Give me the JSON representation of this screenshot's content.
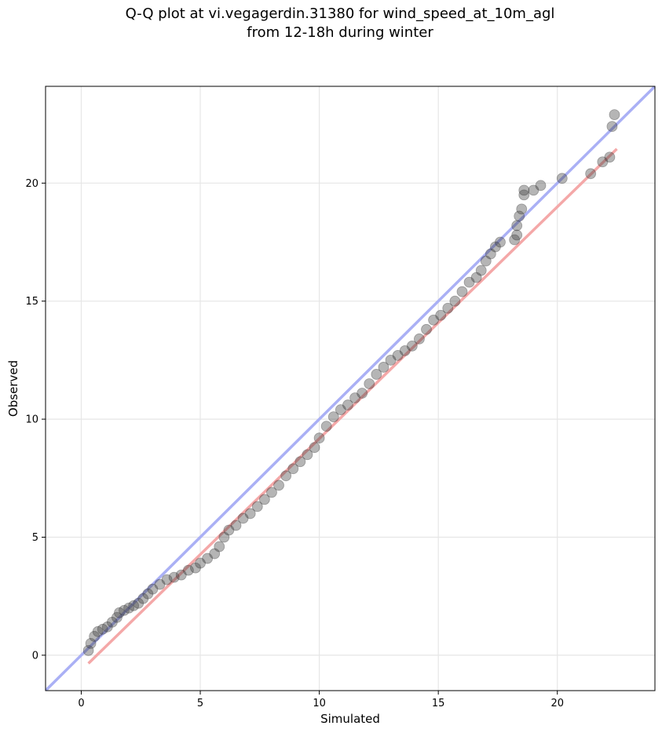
{
  "chart_data": {
    "type": "scatter",
    "title_line1": "Q-Q plot at vi.vegagerdin.31380 for wind_speed_at_10m_agl",
    "title_line2": "from 12-18h during winter",
    "xlabel": "Simulated",
    "ylabel": "Observed",
    "xlim": [
      -1.5,
      24.1
    ],
    "ylim": [
      -1.5,
      24.1
    ],
    "xticks": [
      0,
      5,
      10,
      15,
      20
    ],
    "yticks": [
      0,
      5,
      10,
      15,
      20
    ],
    "grid": true,
    "identity_line": {
      "name": "1:1",
      "color": "#aab0f5"
    },
    "fit_line": {
      "points": [
        [
          0.3,
          -0.35
        ],
        [
          22.5,
          21.45
        ]
      ],
      "color": "#f4a8a8"
    },
    "quantiles": [
      [
        0.3,
        0.2
      ],
      [
        0.4,
        0.5
      ],
      [
        0.55,
        0.8
      ],
      [
        0.7,
        1.0
      ],
      [
        0.9,
        1.1
      ],
      [
        1.1,
        1.2
      ],
      [
        1.3,
        1.4
      ],
      [
        1.5,
        1.6
      ],
      [
        1.6,
        1.8
      ],
      [
        1.8,
        1.9
      ],
      [
        2.0,
        2.0
      ],
      [
        2.2,
        2.1
      ],
      [
        2.4,
        2.2
      ],
      [
        2.6,
        2.4
      ],
      [
        2.8,
        2.6
      ],
      [
        3.0,
        2.8
      ],
      [
        3.3,
        3.0
      ],
      [
        3.6,
        3.2
      ],
      [
        3.9,
        3.3
      ],
      [
        4.2,
        3.4
      ],
      [
        4.5,
        3.6
      ],
      [
        4.8,
        3.7
      ],
      [
        5.0,
        3.9
      ],
      [
        5.3,
        4.1
      ],
      [
        5.6,
        4.3
      ],
      [
        5.8,
        4.6
      ],
      [
        6.0,
        5.0
      ],
      [
        6.2,
        5.3
      ],
      [
        6.5,
        5.5
      ],
      [
        6.8,
        5.8
      ],
      [
        7.1,
        6.0
      ],
      [
        7.4,
        6.3
      ],
      [
        7.7,
        6.6
      ],
      [
        8.0,
        6.9
      ],
      [
        8.3,
        7.2
      ],
      [
        8.6,
        7.6
      ],
      [
        8.9,
        7.9
      ],
      [
        9.2,
        8.2
      ],
      [
        9.5,
        8.5
      ],
      [
        9.8,
        8.8
      ],
      [
        10.0,
        9.2
      ],
      [
        10.3,
        9.7
      ],
      [
        10.6,
        10.1
      ],
      [
        10.9,
        10.4
      ],
      [
        11.2,
        10.6
      ],
      [
        11.5,
        10.9
      ],
      [
        11.8,
        11.1
      ],
      [
        12.1,
        11.5
      ],
      [
        12.4,
        11.9
      ],
      [
        12.7,
        12.2
      ],
      [
        13.0,
        12.5
      ],
      [
        13.3,
        12.7
      ],
      [
        13.6,
        12.9
      ],
      [
        13.9,
        13.1
      ],
      [
        14.2,
        13.4
      ],
      [
        14.5,
        13.8
      ],
      [
        14.8,
        14.2
      ],
      [
        15.1,
        14.4
      ],
      [
        15.4,
        14.7
      ],
      [
        15.7,
        15.0
      ],
      [
        16.0,
        15.4
      ],
      [
        16.3,
        15.8
      ],
      [
        16.6,
        16.0
      ],
      [
        16.8,
        16.3
      ],
      [
        17.0,
        16.7
      ],
      [
        17.2,
        17.0
      ],
      [
        17.4,
        17.3
      ],
      [
        17.6,
        17.5
      ],
      [
        18.2,
        17.6
      ],
      [
        18.3,
        17.8
      ],
      [
        18.3,
        18.2
      ],
      [
        18.4,
        18.6
      ],
      [
        18.5,
        18.9
      ],
      [
        18.6,
        19.5
      ],
      [
        18.6,
        19.7
      ],
      [
        19.0,
        19.7
      ],
      [
        19.3,
        19.9
      ],
      [
        20.2,
        20.2
      ],
      [
        21.4,
        20.4
      ],
      [
        21.9,
        20.9
      ],
      [
        22.2,
        21.1
      ],
      [
        22.3,
        22.4
      ],
      [
        22.4,
        22.9
      ]
    ]
  }
}
